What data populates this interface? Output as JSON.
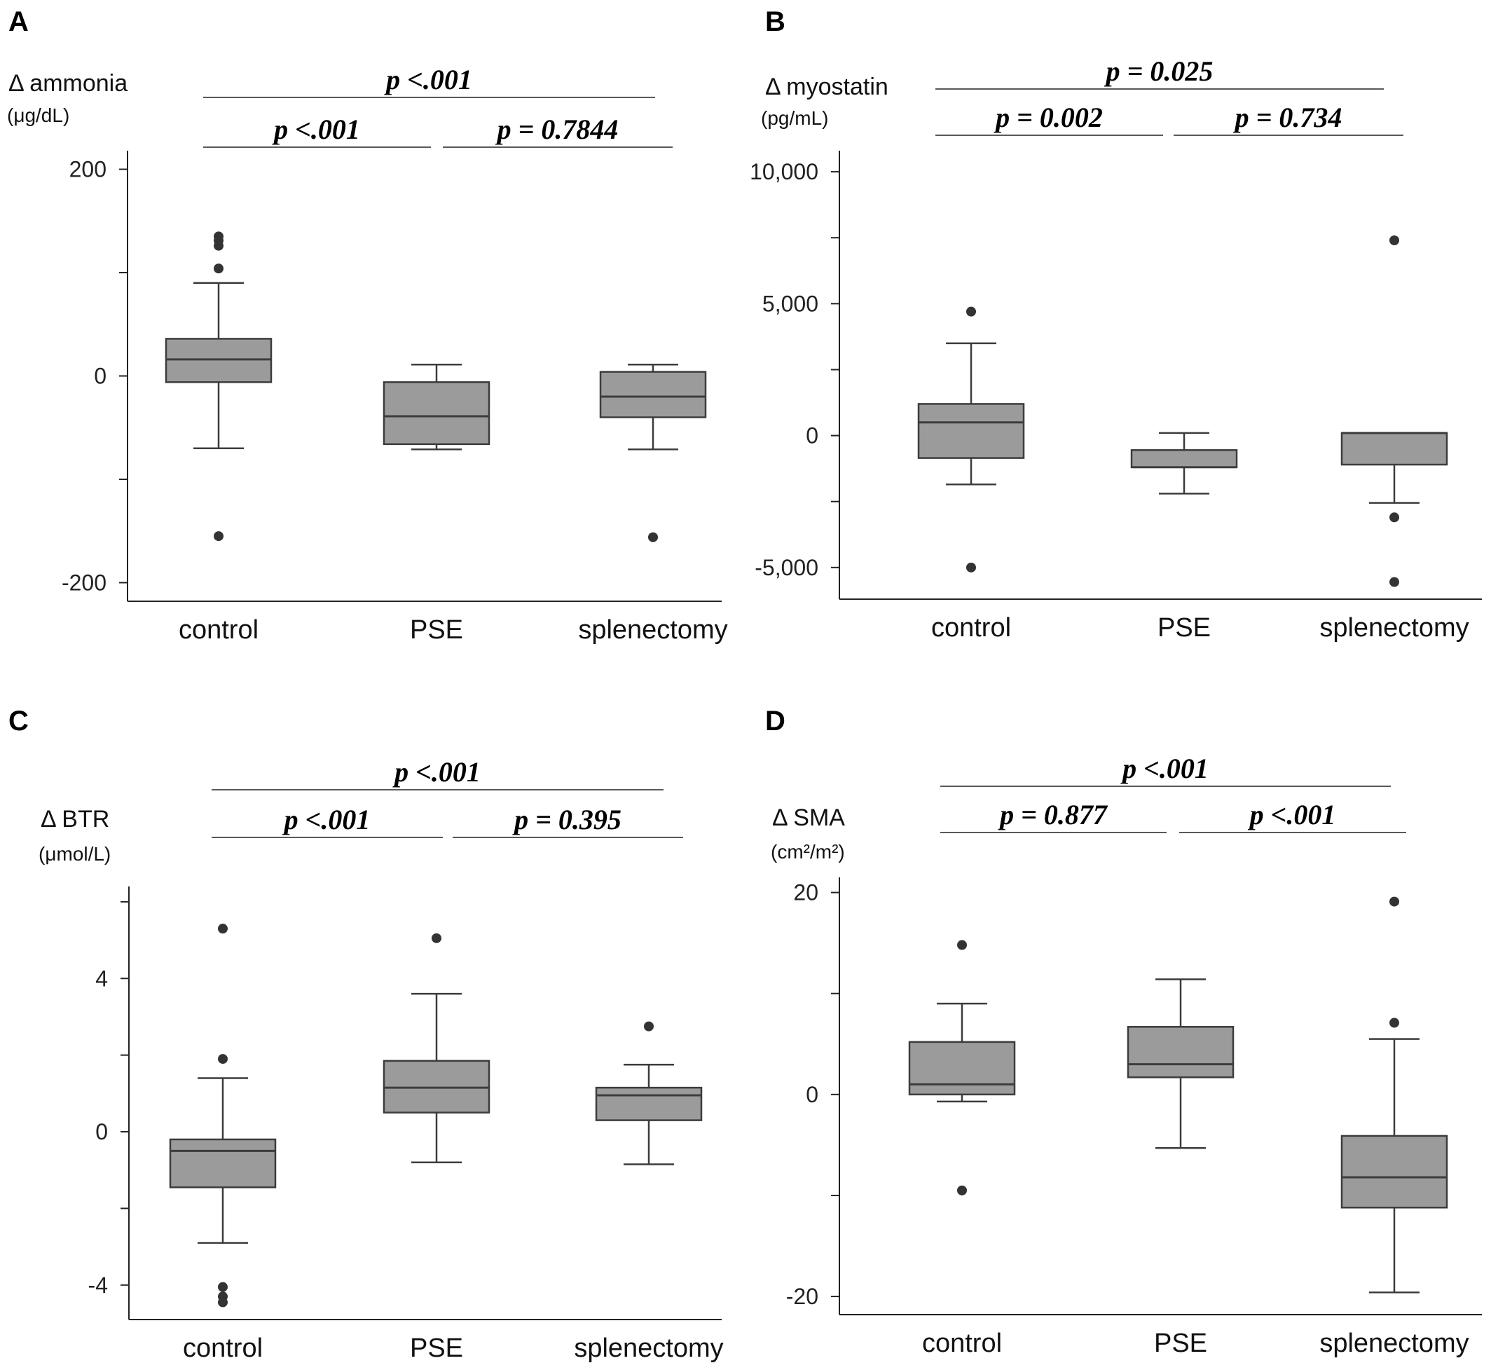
{
  "chart_data": [
    {
      "type": "box",
      "panel_label": "A",
      "ylabel": "Δ ammonia",
      "yunit": "(μg/dL)",
      "categories": [
        "control",
        "PSE",
        "splenectomy"
      ],
      "yticks": [
        200,
        0,
        -200
      ],
      "ytick_labels": [
        "200",
        "0",
        "-200"
      ],
      "ylim": [
        -218,
        218
      ],
      "series": [
        {
          "whisker_low": -70,
          "q1": -6,
          "median": 16,
          "q3": 36,
          "whisker_high": 90,
          "outliers": [
            135,
            131,
            126,
            104,
            -155
          ]
        },
        {
          "whisker_low": -71,
          "q1": -66,
          "median": -39,
          "q3": -6,
          "whisker_high": 11,
          "outliers": []
        },
        {
          "whisker_low": -71,
          "q1": -40,
          "median": -20,
          "q3": 4,
          "whisker_high": 11,
          "outliers": [
            -156
          ]
        }
      ],
      "comparisons": [
        {
          "label": "p <.001",
          "from": 0,
          "to": 2,
          "level": 2
        },
        {
          "label": "p <.001",
          "from": 0,
          "to": 1,
          "level": 1
        },
        {
          "label": "p = 0.7844",
          "from": 1,
          "to": 2,
          "level": 1
        }
      ]
    },
    {
      "type": "box",
      "panel_label": "B",
      "ylabel": "Δ myostatin",
      "yunit": "(pg/mL)",
      "categories": [
        "control",
        "PSE",
        "splenectomy"
      ],
      "yticks": [
        10000,
        5000,
        0,
        -5000
      ],
      "ytick_labels": [
        "10,000",
        "5,000",
        "0",
        "-5,000"
      ],
      "ylim": [
        -6200,
        10800
      ],
      "series": [
        {
          "whisker_low": -1850,
          "q1": -850,
          "median": 500,
          "q3": 1200,
          "whisker_high": 3500,
          "outliers": [
            4700,
            -5000
          ]
        },
        {
          "whisker_low": -2200,
          "q1": -1200,
          "median": -1200,
          "q3": -550,
          "whisker_high": 100,
          "outliers": []
        },
        {
          "whisker_low": -2550,
          "q1": -1100,
          "median": 100,
          "q3": 100,
          "whisker_high": 100,
          "outliers": [
            7400,
            -3100,
            -5550
          ]
        }
      ],
      "comparisons": [
        {
          "label": "p = 0.025",
          "from": 0,
          "to": 2,
          "level": 2
        },
        {
          "label": "p = 0.002",
          "from": 0,
          "to": 1,
          "level": 1
        },
        {
          "label": "p = 0.734",
          "from": 1,
          "to": 2,
          "level": 1
        }
      ]
    },
    {
      "type": "box",
      "panel_label": "C",
      "ylabel": "Δ BTR",
      "yunit": "(μmol/L)",
      "categories": [
        "control",
        "PSE",
        "splenectomy"
      ],
      "yticks": [
        4,
        0,
        -4
      ],
      "ytick_labels": [
        "4",
        "0",
        "-4"
      ],
      "ylim": [
        -4.9,
        6.4
      ],
      "series": [
        {
          "whisker_low": -2.9,
          "q1": -1.45,
          "median": -0.5,
          "q3": -0.2,
          "whisker_high": 1.4,
          "outliers": [
            5.3,
            1.9,
            -4.05,
            -4.3,
            -4.45
          ]
        },
        {
          "whisker_low": -0.8,
          "q1": 0.5,
          "median": 1.15,
          "q3": 1.85,
          "whisker_high": 3.6,
          "outliers": [
            5.05
          ]
        },
        {
          "whisker_low": -0.85,
          "q1": 0.3,
          "median": 0.95,
          "q3": 1.15,
          "whisker_high": 1.75,
          "outliers": [
            2.75
          ]
        }
      ],
      "comparisons": [
        {
          "label": "p <.001",
          "from": 0,
          "to": 2,
          "level": 2
        },
        {
          "label": "p <.001",
          "from": 0,
          "to": 1,
          "level": 1
        },
        {
          "label": "p = 0.395",
          "from": 1,
          "to": 2,
          "level": 1
        }
      ]
    },
    {
      "type": "box",
      "panel_label": "D",
      "ylabel": "Δ SMA",
      "yunit": "(cm²/m²)",
      "categories": [
        "control",
        "PSE",
        "splenectomy"
      ],
      "yticks": [
        20,
        0,
        -20
      ],
      "ytick_labels": [
        "20",
        "0",
        "-20"
      ],
      "ylim": [
        -21.8,
        21.5
      ],
      "series": [
        {
          "whisker_low": -0.7,
          "q1": 0,
          "median": 1,
          "q3": 5.2,
          "whisker_high": 9,
          "outliers": [
            14.8,
            -9.5
          ]
        },
        {
          "whisker_low": -5.3,
          "q1": 1.7,
          "median": 3,
          "q3": 6.7,
          "whisker_high": 11.4,
          "outliers": []
        },
        {
          "whisker_low": -19.6,
          "q1": -11.2,
          "median": -8.2,
          "q3": -4.1,
          "whisker_high": 5.5,
          "outliers": [
            19.1,
            7.1
          ]
        }
      ],
      "comparisons": [
        {
          "label": "p <.001",
          "from": 0,
          "to": 2,
          "level": 2
        },
        {
          "label": "p = 0.877",
          "from": 0,
          "to": 1,
          "level": 1
        },
        {
          "label": "p <.001",
          "from": 1,
          "to": 2,
          "level": 1
        }
      ]
    }
  ]
}
